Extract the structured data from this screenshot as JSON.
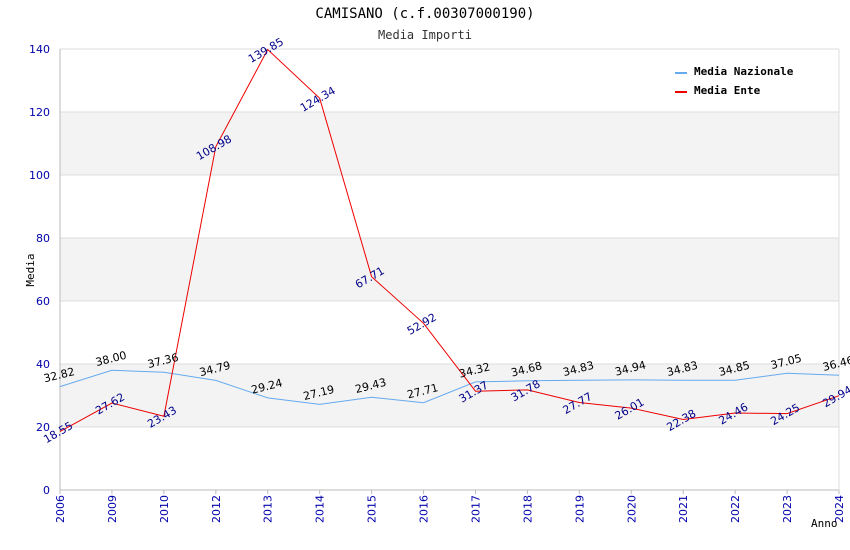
{
  "chart_data": {
    "type": "line",
    "title": "CAMISANO (c.f.00307000190)",
    "subtitle": "Media Importi",
    "ylabel": "Media",
    "xlabel": "Anno",
    "ylim": [
      0,
      140
    ],
    "yticks": [
      0,
      20,
      40,
      60,
      80,
      100,
      120,
      140
    ],
    "grid": true,
    "legend_position": "top-right",
    "categories": [
      "2006",
      "2009",
      "2010",
      "2012",
      "2013",
      "2014",
      "2015",
      "2016",
      "2017",
      "2018",
      "2019",
      "2020",
      "2021",
      "2022",
      "2023",
      "2024"
    ],
    "series": [
      {
        "name": "Media Nazionale",
        "color": "#66aaee",
        "values": [
          32.82,
          38.0,
          37.36,
          34.79,
          29.24,
          27.19,
          29.43,
          27.71,
          34.32,
          34.68,
          34.83,
          34.94,
          34.83,
          34.85,
          37.05,
          36.46
        ],
        "labels": [
          "32.82",
          "38.00",
          "37.36",
          "34.79",
          "29.24",
          "27.19",
          "29.43",
          "27.71",
          "34.32",
          "34.68",
          "34.83",
          "34.94",
          "34.83",
          "34.85",
          "37.05",
          "36.46"
        ]
      },
      {
        "name": "Media Ente",
        "color": "#ee0000",
        "values": [
          18.55,
          27.62,
          23.43,
          108.98,
          139.85,
          124.34,
          67.71,
          52.92,
          31.37,
          31.78,
          27.77,
          26.01,
          22.38,
          24.46,
          24.25,
          29.94
        ],
        "labels": [
          "18.55",
          "27.62",
          "23.43",
          "108.98",
          "139.85",
          "124.34",
          "67.71",
          "52.92",
          "31.37",
          "31.78",
          "27.77",
          "26.01",
          "22.38",
          "24.46",
          "24.25",
          "29.94"
        ]
      }
    ]
  }
}
